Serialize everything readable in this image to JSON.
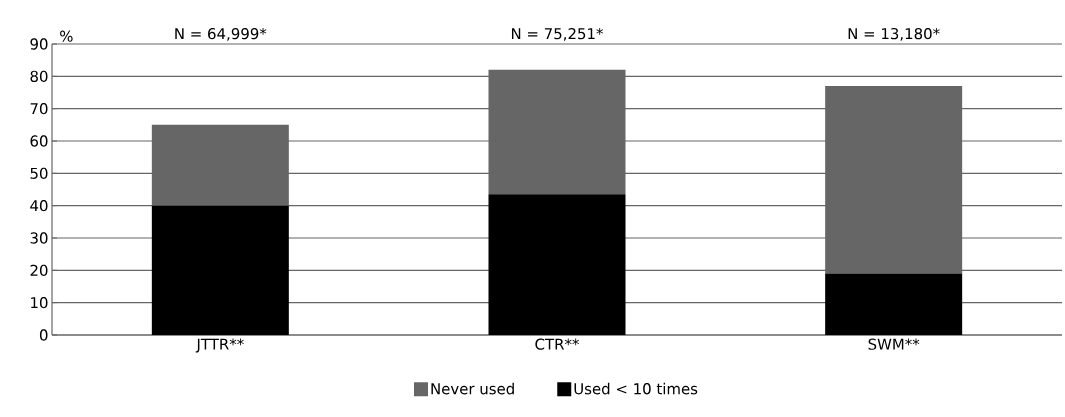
{
  "chart_data": {
    "type": "bar",
    "stacked": true,
    "ylabel": "%",
    "categories": [
      "JTTR**",
      "CTR**",
      "SWM**"
    ],
    "series": [
      {
        "name": "Used < 10 times",
        "color": "#000000",
        "values": [
          40,
          43.5,
          19
        ]
      },
      {
        "name": "Never used",
        "color": "#666666",
        "values": [
          25,
          38.5,
          58
        ]
      }
    ],
    "ylim": [
      0,
      90
    ],
    "yticks": [
      0,
      10,
      20,
      30,
      40,
      50,
      60,
      70,
      80,
      90
    ],
    "grid": "y",
    "legend": "bottom",
    "annotations": [
      "N = 64,999*",
      "N = 75,251*",
      "N = 13,180*"
    ]
  }
}
